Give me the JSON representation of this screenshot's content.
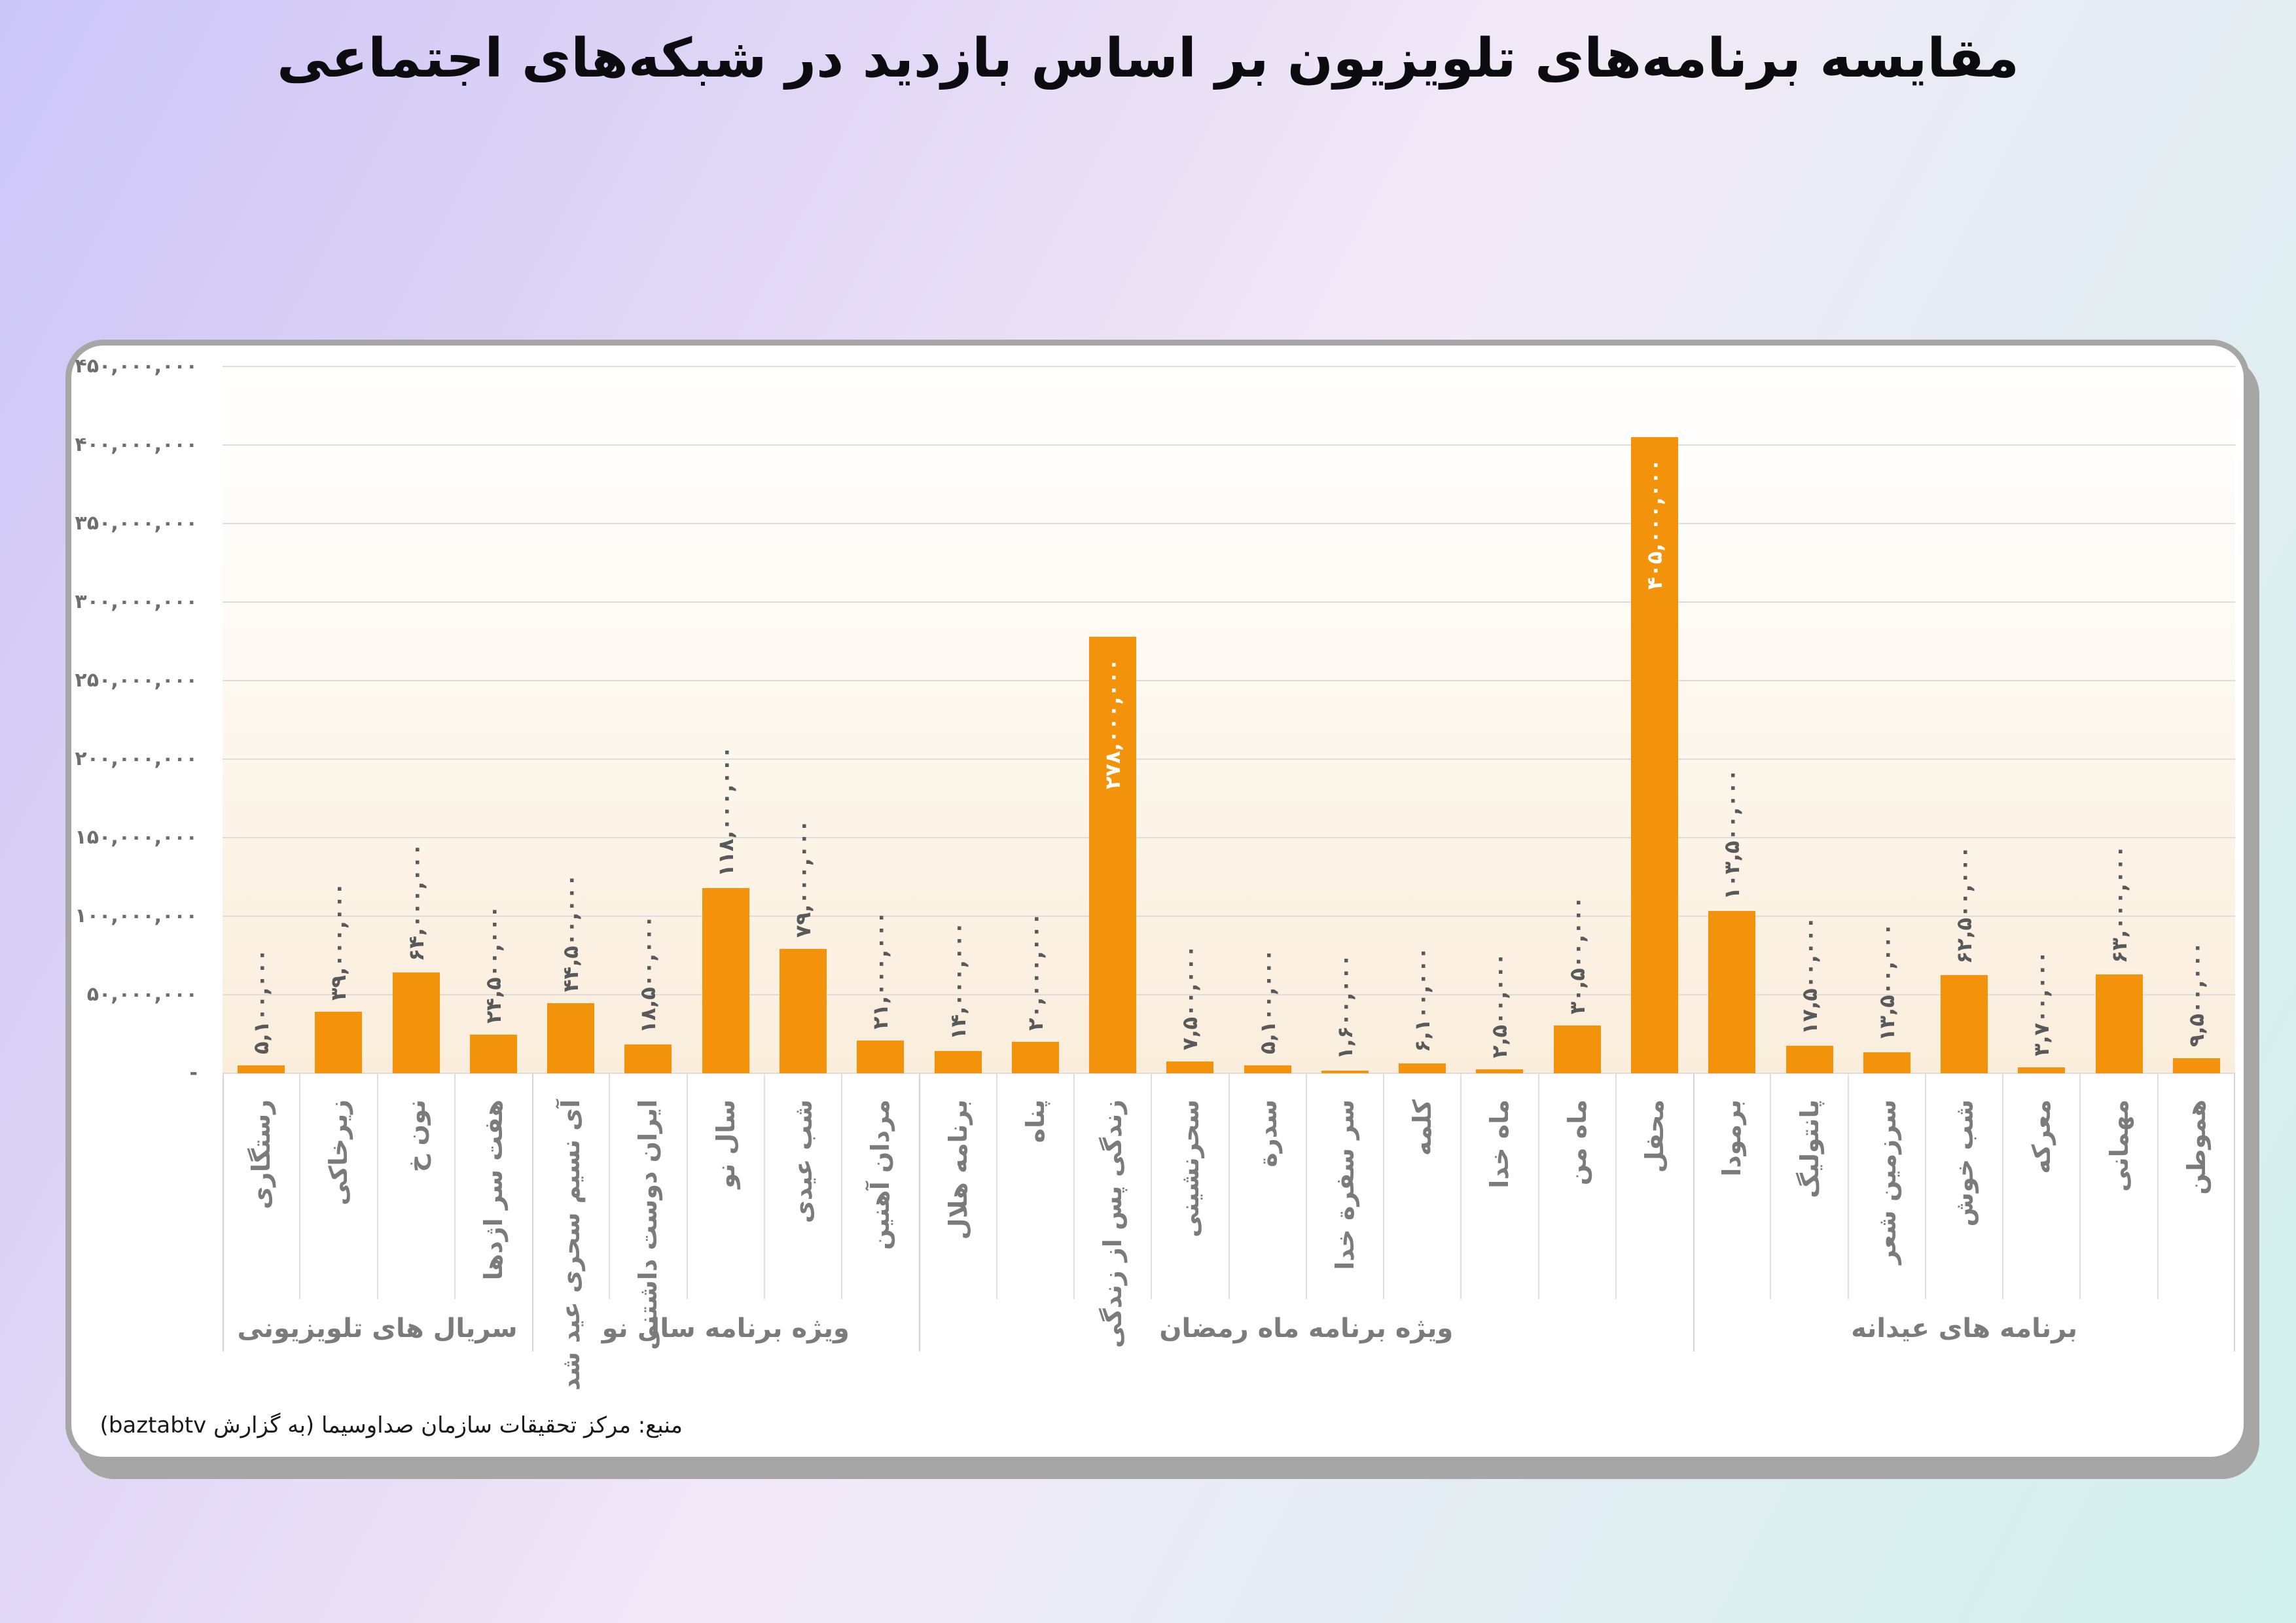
{
  "page": {
    "title": "مقایسه برنامه‌های تلویزیون بر اساس بازدید در شبکه‌های اجتماعی",
    "source": "منبع: مرکز تحقیقات سازمان صداوسیما (به گزارش baztabtv)",
    "colors": {
      "bar": "#F3920B",
      "card_background": "#ffffff",
      "card_border": "#a6a6a6",
      "plot_gradient_top": "#fffffe",
      "plot_gradient_bottom": "#faeddc",
      "gridline": "#dcdcdc",
      "value_label": "#58595b",
      "axis_label": "#7b7b7b",
      "tick_label": "#6e6e6e",
      "background_top_left": "#ccc6f8",
      "background_bottom_right": "#d2f1ee",
      "inside_value_label": "#ffffff"
    }
  },
  "chart_data": {
    "type": "bar",
    "title": "مقایسه برنامه‌های تلویزیون بر اساس بازدید در شبکه‌های اجتماعی",
    "xlabel": "",
    "ylabel": "",
    "ylim": [
      0,
      450000000
    ],
    "grid": true,
    "legend": false,
    "bar_color": "#F3920B",
    "y_ticks": [
      {
        "value": 450000000,
        "label": "۴۵۰,۰۰۰,۰۰۰"
      },
      {
        "value": 400000000,
        "label": "۴۰۰,۰۰۰,۰۰۰"
      },
      {
        "value": 350000000,
        "label": "۳۵۰,۰۰۰,۰۰۰"
      },
      {
        "value": 300000000,
        "label": "۳۰۰,۰۰۰,۰۰۰"
      },
      {
        "value": 250000000,
        "label": "۲۵۰,۰۰۰,۰۰۰"
      },
      {
        "value": 200000000,
        "label": "۲۰۰,۰۰۰,۰۰۰"
      },
      {
        "value": 150000000,
        "label": "۱۵۰,۰۰۰,۰۰۰"
      },
      {
        "value": 100000000,
        "label": "۱۰۰,۰۰۰,۰۰۰"
      },
      {
        "value": 50000000,
        "label": "۵۰,۰۰۰,۰۰۰"
      },
      {
        "value": 0,
        "label": "-"
      }
    ],
    "bars": [
      {
        "label": "رستگاری",
        "value": 5100000,
        "value_label": "۵,۱۰۰,۰۰۰"
      },
      {
        "label": "زیرخاکی",
        "value": 39000000,
        "value_label": "۳۹,۰۰۰,۰۰۰"
      },
      {
        "label": "نون خ",
        "value": 64000000,
        "value_label": "۶۴,۰۰۰,۰۰۰"
      },
      {
        "label": "هفت سر اژدها",
        "value": 24500000,
        "value_label": "۲۴,۵۰۰,۰۰۰"
      },
      {
        "label": "آی نسیم سحری عید شد",
        "value": 44500000,
        "value_label": "۴۴,۵۰۰,۰۰۰"
      },
      {
        "label": "ایران دوست داشتنی",
        "value": 18500000,
        "value_label": "۱۸,۵۰۰,۰۰۰"
      },
      {
        "label": "سال نو",
        "value": 118000000,
        "value_label": "۱۱۸,۰۰۰,۰۰۰"
      },
      {
        "label": "شب عیدی",
        "value": 79000000,
        "value_label": "۷۹,۰۰۰,۰۰۰"
      },
      {
        "label": "مردان آهنین",
        "value": 21000000,
        "value_label": "۲۱,۰۰۰,۰۰۰"
      },
      {
        "label": "برنامه هلال",
        "value": 14000000,
        "value_label": "۱۴,۰۰۰,۰۰۰"
      },
      {
        "label": "پناه",
        "value": 20000000,
        "value_label": "۲۰,۰۰۰,۰۰۰"
      },
      {
        "label": "زندگی پس از زندگی",
        "value": 278000000,
        "value_label": "۲۷۸,۰۰۰,۰۰۰"
      },
      {
        "label": "سحرنشینی",
        "value": 7500000,
        "value_label": "۷,۵۰۰,۰۰۰"
      },
      {
        "label": "سدرة",
        "value": 5100000,
        "value_label": "۵,۱۰۰,۰۰۰"
      },
      {
        "label": "سر سفرة خدا",
        "value": 1600000,
        "value_label": "۱,۶۰۰,۰۰۰"
      },
      {
        "label": "کلمه",
        "value": 6100000,
        "value_label": "۶,۱۰۰,۰۰۰"
      },
      {
        "label": "ماه خدا",
        "value": 2500000,
        "value_label": "۲,۵۰۰,۰۰۰"
      },
      {
        "label": "ماه من",
        "value": 30500000,
        "value_label": "۳۰,۵۰۰,۰۰۰"
      },
      {
        "label": "محفل",
        "value": 405000000,
        "value_label": "۴۰۵,۰۰۰,۰۰۰"
      },
      {
        "label": "برمودا",
        "value": 103500000,
        "value_label": "۱۰۳,۵۰۰,۰۰۰"
      },
      {
        "label": "پانتولیگ",
        "value": 17500000,
        "value_label": "۱۷,۵۰۰,۰۰۰"
      },
      {
        "label": "سرزمین شعر",
        "value": 13500000,
        "value_label": "۱۳,۵۰۰,۰۰۰"
      },
      {
        "label": "شب خوش",
        "value": 62500000,
        "value_label": "۶۲,۵۰۰,۰۰۰"
      },
      {
        "label": "معرکه",
        "value": 3700000,
        "value_label": "۳,۷۰۰,۰۰۰"
      },
      {
        "label": "مهمانی",
        "value": 63000000,
        "value_label": "۶۳,۰۰۰,۰۰۰"
      },
      {
        "label": "هموطن",
        "value": 9500000,
        "value_label": "۹,۵۰۰,۰۰۰"
      }
    ],
    "groups": [
      {
        "label": "سریال های تلویزیونی",
        "count": 4
      },
      {
        "label": "ویژه برنامه سال نو",
        "count": 5
      },
      {
        "label": "ویژه برنامه ماه رمضان",
        "count": 10
      },
      {
        "label": "برنامه های عیدانه",
        "count": 7
      }
    ],
    "inside_label_threshold": 200000000,
    "legend_position": "none"
  }
}
